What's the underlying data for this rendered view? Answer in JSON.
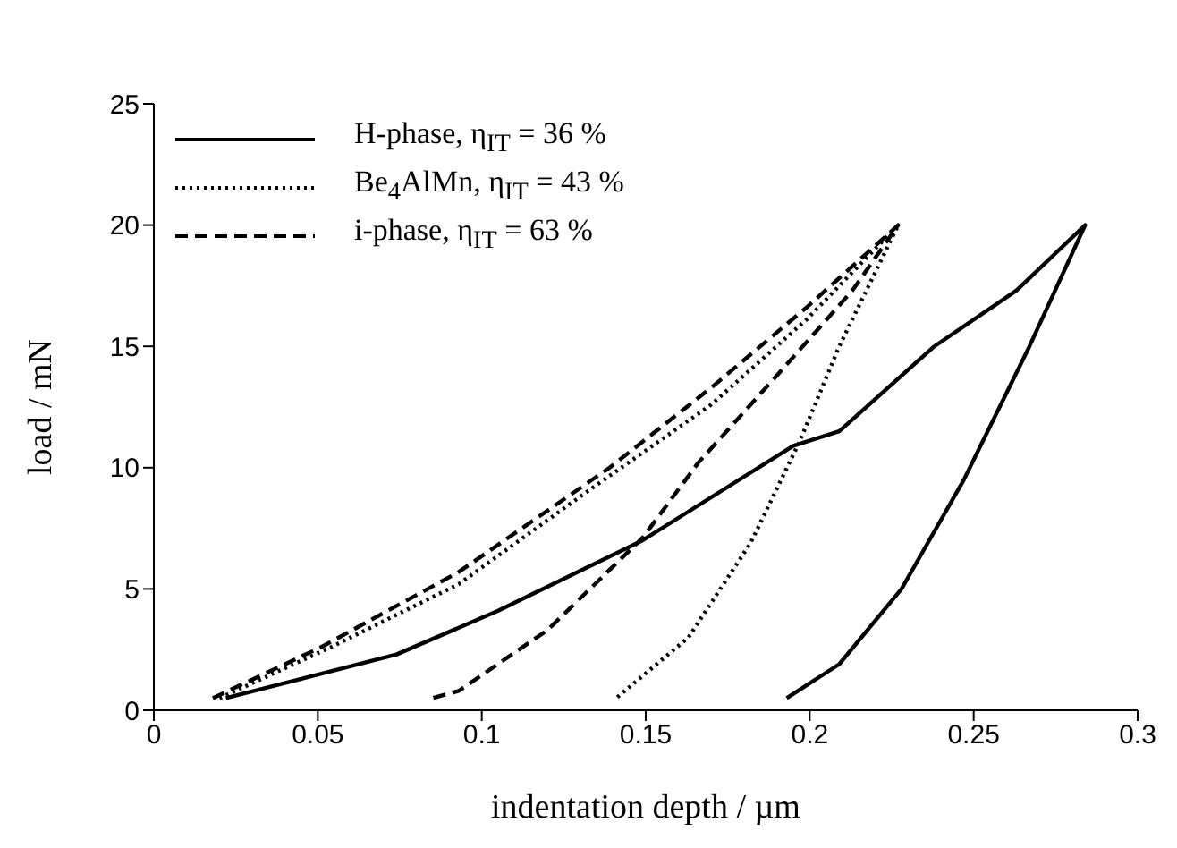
{
  "chart_data": {
    "type": "line",
    "xlabel": "indentation depth / µm",
    "ylabel": "load / mN",
    "xlim": [
      0,
      0.3
    ],
    "xticks": [
      0,
      0.05,
      0.1,
      0.15,
      0.2,
      0.25,
      0.3
    ],
    "ylim": [
      0,
      25
    ],
    "yticks": [
      0,
      5,
      10,
      15,
      20,
      25
    ],
    "grid": false,
    "legend": "top left",
    "marker": "none",
    "series": [
      {
        "name": "H-phase, η$_{IT}$ = 36 %",
        "color": "#000000",
        "line_style": "solid",
        "x": [
          0.022,
          0.074,
          0.105,
          0.149,
          0.195,
          0.209,
          0.238,
          0.263,
          0.284,
          0.267,
          0.247,
          0.228,
          0.209,
          0.193
        ],
        "values": [
          0.5,
          2.3,
          4.1,
          7.0,
          10.9,
          11.5,
          15.0,
          17.3,
          20,
          15.0,
          9.5,
          5.0,
          1.9,
          0.5
        ]
      },
      {
        "name": "Be$_{4}$AlMn, η$_{IT}$ = 43 %",
        "color": "#000000",
        "line_style": "dotted",
        "x": [
          0.02,
          0.054,
          0.093,
          0.132,
          0.17,
          0.199,
          0.227,
          0.209,
          0.197,
          0.182,
          0.163,
          0.141
        ],
        "values": [
          0.5,
          2.6,
          5.2,
          9.0,
          12.6,
          16.1,
          20,
          15.0,
          11.1,
          6.9,
          3.0,
          0.5
        ]
      },
      {
        "name": "i-phase, η$_{IT}$ = 63 %",
        "color": "#000000",
        "line_style": "dashed",
        "x": [
          0.018,
          0.051,
          0.093,
          0.139,
          0.17,
          0.199,
          0.227,
          0.213,
          0.19,
          0.166,
          0.149,
          0.12,
          0.093,
          0.085
        ],
        "values": [
          0.5,
          2.6,
          5.7,
          10.0,
          13.3,
          16.6,
          20,
          17.3,
          13.8,
          10.2,
          7.1,
          3.3,
          0.8,
          0.5
        ]
      }
    ]
  }
}
